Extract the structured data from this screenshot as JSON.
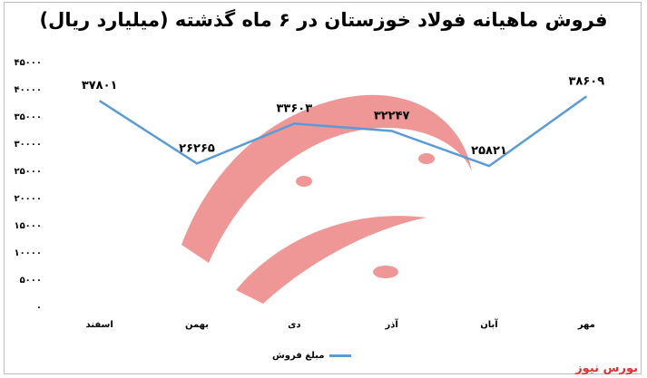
{
  "chart_data": {
    "type": "line",
    "title": "فروش ماهیانه فولاد خوزستان در ۶ ماه گذشته (میلیارد ریال)",
    "categories": [
      "مهر",
      "آبان",
      "آذر",
      "دی",
      "بهمن",
      "اسفند"
    ],
    "series": [
      {
        "name": "مبلغ فروش",
        "values": [
          38609,
          25821,
          32247,
          33603,
          26265,
          37801
        ],
        "labels": [
          "۳۸۶۰۹",
          "۲۵۸۲۱",
          "۳۲۲۴۷",
          "۳۳۶۰۳",
          "۲۶۲۶۵",
          "۳۷۸۰۱"
        ],
        "color": "#5b9bd5"
      }
    ],
    "ylim": [
      0,
      45000
    ],
    "yticks": [
      0,
      5000,
      10000,
      15000,
      20000,
      25000,
      30000,
      35000,
      40000,
      45000
    ],
    "ytick_labels": [
      "۰",
      "۵۰۰۰",
      "۱۰۰۰۰",
      "۱۵۰۰۰",
      "۲۰۰۰۰",
      "۲۵۰۰۰",
      "۳۰۰۰۰",
      "۳۵۰۰۰",
      "۴۰۰۰۰",
      "۴۵۰۰۰"
    ],
    "grid": false,
    "legend_position": "bottom"
  },
  "watermark": {
    "text": "بورس نیوز",
    "color": "#e03030"
  },
  "source": "بورس نیوز"
}
